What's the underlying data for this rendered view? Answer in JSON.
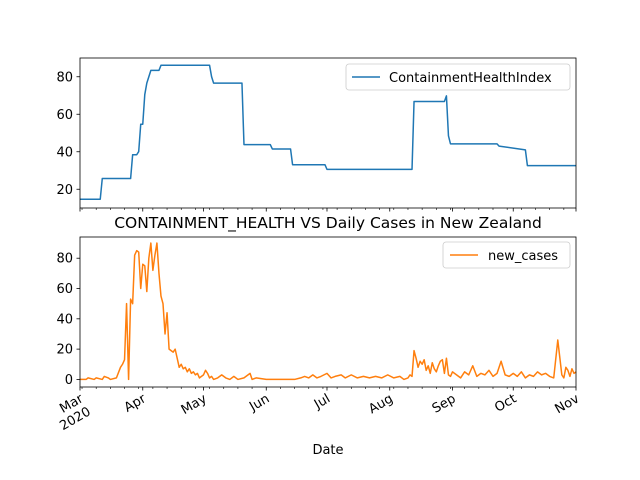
{
  "chart_data": [
    {
      "type": "line",
      "title": "",
      "xlabel": "",
      "ylabel": "",
      "x_range": [
        "2020-03-01",
        "2020-11-01"
      ],
      "ylim": [
        10,
        90
      ],
      "yticks": [
        20,
        40,
        60,
        80
      ],
      "legend_position": "top-right",
      "grid": false,
      "series": [
        {
          "name": "ContainmentHealthIndex",
          "color": "#1f77b4",
          "x": [
            "2020-03-01",
            "2020-03-11",
            "2020-03-12",
            "2020-03-26",
            "2020-03-27",
            "2020-03-29",
            "2020-03-30",
            "2020-03-31",
            "2020-04-01",
            "2020-04-02",
            "2020-04-03",
            "2020-04-05",
            "2020-04-09",
            "2020-04-10",
            "2020-04-14",
            "2020-04-15",
            "2020-05-04",
            "2020-05-05",
            "2020-05-06",
            "2020-05-07",
            "2020-05-08",
            "2020-05-20",
            "2020-05-21",
            "2020-06-03",
            "2020-06-04",
            "2020-06-13",
            "2020-06-14",
            "2020-06-30",
            "2020-07-01",
            "2020-08-12",
            "2020-08-13",
            "2020-08-28",
            "2020-08-29",
            "2020-08-30",
            "2020-08-31",
            "2020-09-23",
            "2020-09-24",
            "2020-10-07",
            "2020-10-08",
            "2020-11-01"
          ],
          "y": [
            14.7,
            14.7,
            25.7,
            25.7,
            38.4,
            38.4,
            40.1,
            54.7,
            54.7,
            70.5,
            76.6,
            83.4,
            83.4,
            86.1,
            86.1,
            86.1,
            86.1,
            80.0,
            76.6,
            76.6,
            76.6,
            76.6,
            43.8,
            43.8,
            41.5,
            41.5,
            33.1,
            33.1,
            30.6,
            30.6,
            66.8,
            66.8,
            69.8,
            48.5,
            44.2,
            44.2,
            43.0,
            41.0,
            32.6,
            32.6
          ]
        }
      ]
    },
    {
      "type": "line",
      "title": "CONTAINMENT_HEALTH VS Daily Cases in New Zealand",
      "xlabel": "Date",
      "ylabel": "",
      "x_range": [
        "2020-03-01",
        "2020-11-01"
      ],
      "ylim": [
        -5,
        94
      ],
      "yticks": [
        0,
        20,
        40,
        60,
        80
      ],
      "xtick_labels": [
        "Mar\n2020",
        "Apr",
        "May",
        "Jun",
        "Jul",
        "Aug",
        "Sep",
        "Oct",
        "Nov"
      ],
      "legend_position": "top-right",
      "grid": false,
      "series": [
        {
          "name": "new_cases",
          "color": "#ff7f0e",
          "x": [
            "2020-03-01",
            "2020-03-04",
            "2020-03-05",
            "2020-03-08",
            "2020-03-09",
            "2020-03-12",
            "2020-03-13",
            "2020-03-15",
            "2020-03-16",
            "2020-03-19",
            "2020-03-21",
            "2020-03-22",
            "2020-03-23",
            "2020-03-24",
            "2020-03-25",
            "2020-03-26",
            "2020-03-27",
            "2020-03-28",
            "2020-03-29",
            "2020-03-30",
            "2020-03-31",
            "2020-04-01",
            "2020-04-02",
            "2020-04-03",
            "2020-04-04",
            "2020-04-05",
            "2020-04-06",
            "2020-04-07",
            "2020-04-08",
            "2020-04-09",
            "2020-04-10",
            "2020-04-11",
            "2020-04-12",
            "2020-04-13",
            "2020-04-14",
            "2020-04-15",
            "2020-04-16",
            "2020-04-17",
            "2020-04-18",
            "2020-04-19",
            "2020-04-20",
            "2020-04-21",
            "2020-04-22",
            "2020-04-23",
            "2020-04-24",
            "2020-04-25",
            "2020-04-26",
            "2020-04-27",
            "2020-04-28",
            "2020-04-29",
            "2020-04-30",
            "2020-05-01",
            "2020-05-02",
            "2020-05-03",
            "2020-05-04",
            "2020-05-05",
            "2020-05-06",
            "2020-05-08",
            "2020-05-10",
            "2020-05-12",
            "2020-05-14",
            "2020-05-16",
            "2020-05-18",
            "2020-05-21",
            "2020-05-24",
            "2020-05-25",
            "2020-05-27",
            "2020-06-01",
            "2020-06-05",
            "2020-06-10",
            "2020-06-15",
            "2020-06-18",
            "2020-06-20",
            "2020-06-22",
            "2020-06-24",
            "2020-06-26",
            "2020-06-28",
            "2020-07-01",
            "2020-07-03",
            "2020-07-05",
            "2020-07-08",
            "2020-07-10",
            "2020-07-13",
            "2020-07-16",
            "2020-07-19",
            "2020-07-22",
            "2020-07-25",
            "2020-07-28",
            "2020-07-31",
            "2020-08-03",
            "2020-08-06",
            "2020-08-08",
            "2020-08-10",
            "2020-08-11",
            "2020-08-12",
            "2020-08-13",
            "2020-08-14",
            "2020-08-15",
            "2020-08-16",
            "2020-08-17",
            "2020-08-18",
            "2020-08-19",
            "2020-08-20",
            "2020-08-21",
            "2020-08-22",
            "2020-08-23",
            "2020-08-24",
            "2020-08-25",
            "2020-08-26",
            "2020-08-27",
            "2020-08-28",
            "2020-08-29",
            "2020-08-30",
            "2020-08-31",
            "2020-09-01",
            "2020-09-03",
            "2020-09-05",
            "2020-09-07",
            "2020-09-09",
            "2020-09-11",
            "2020-09-13",
            "2020-09-15",
            "2020-09-17",
            "2020-09-19",
            "2020-09-21",
            "2020-09-23",
            "2020-09-25",
            "2020-09-27",
            "2020-09-29",
            "2020-10-01",
            "2020-10-03",
            "2020-10-05",
            "2020-10-07",
            "2020-10-09",
            "2020-10-11",
            "2020-10-13",
            "2020-10-15",
            "2020-10-17",
            "2020-10-19",
            "2020-10-21",
            "2020-10-23",
            "2020-10-25",
            "2020-10-26",
            "2020-10-27",
            "2020-10-28",
            "2020-10-29",
            "2020-10-30",
            "2020-10-31",
            "2020-11-01"
          ],
          "y": [
            0,
            0,
            1,
            0,
            1,
            0,
            2,
            1,
            0,
            1,
            8,
            10,
            13,
            50,
            0,
            53,
            50,
            82,
            85,
            84,
            60,
            76,
            75,
            58,
            80,
            90,
            72,
            82,
            90,
            70,
            55,
            50,
            30,
            44,
            20,
            19,
            18,
            20,
            14,
            8,
            10,
            7,
            8,
            5,
            7,
            4,
            5,
            3,
            4,
            1,
            2,
            3,
            6,
            4,
            1,
            2,
            0,
            1,
            3,
            1,
            0,
            2,
            0,
            1,
            4,
            0,
            1,
            0,
            0,
            0,
            0,
            1,
            2,
            1,
            3,
            1,
            2,
            4,
            1,
            2,
            3,
            1,
            3,
            1,
            2,
            1,
            2,
            1,
            3,
            1,
            2,
            0,
            1,
            3,
            2,
            19,
            14,
            8,
            12,
            10,
            13,
            6,
            9,
            4,
            11,
            7,
            5,
            9,
            12,
            13,
            4,
            14,
            3,
            2,
            5,
            3,
            1,
            5,
            3,
            9,
            2,
            4,
            3,
            6,
            2,
            4,
            12,
            3,
            2,
            4,
            2,
            5,
            1,
            3,
            2,
            5,
            3,
            4,
            2,
            1,
            26,
            3,
            1,
            8,
            6,
            2,
            7,
            4,
            5
          ]
        }
      ]
    }
  ]
}
